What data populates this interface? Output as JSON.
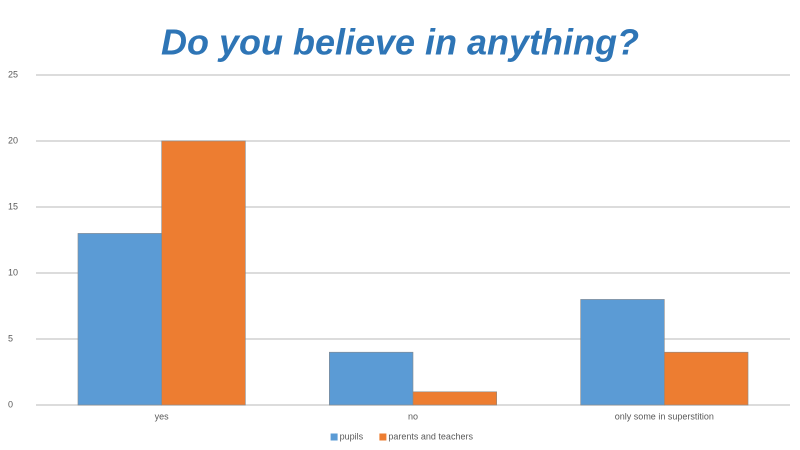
{
  "chart_data": {
    "type": "bar",
    "title": "Do you believe in anything?",
    "categories": [
      "yes",
      "no",
      "only some in superstition"
    ],
    "series": [
      {
        "name": "pupils",
        "color": "#5b9bd5",
        "values": [
          13,
          4,
          8
        ]
      },
      {
        "name": "parents and teachers",
        "color": "#ed7d31",
        "values": [
          20,
          1,
          4
        ]
      }
    ],
    "ylim": [
      0,
      25
    ],
    "yticks": [
      0,
      5,
      10,
      15,
      20,
      25
    ],
    "grid": true,
    "legend": "bottom"
  }
}
